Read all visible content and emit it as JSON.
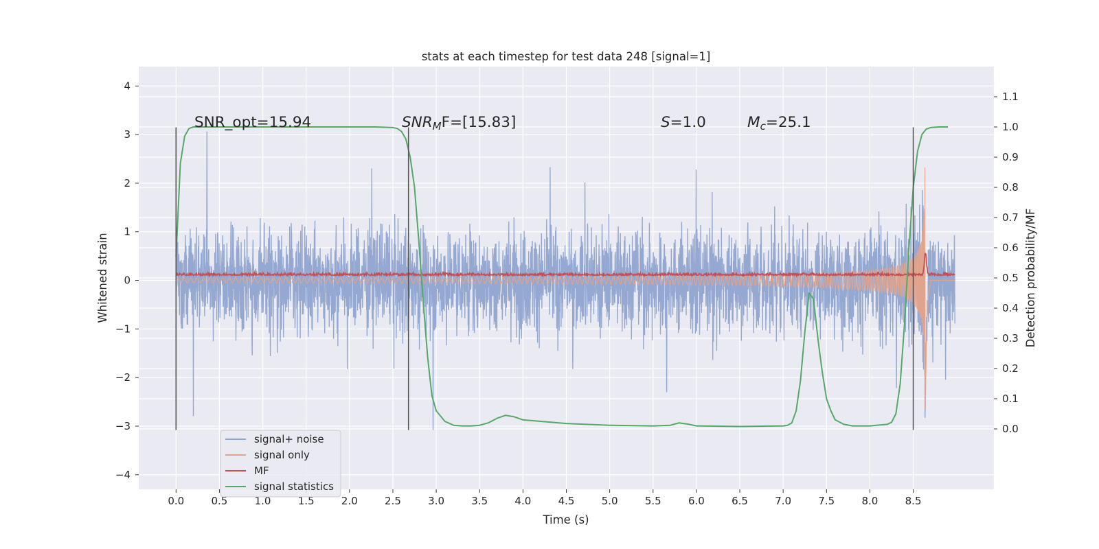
{
  "figure": {
    "title": "stats at each timestep for test data 248 [signal=1]",
    "colors": {
      "background": "#ffffff",
      "axes_face": "#eaeaf2",
      "grid": "#ffffff",
      "signal_noise": "#8fa4cf",
      "signal_only": "#e8a385",
      "mf": "#c44e52",
      "statistics": "#55a868",
      "marker": "#555555"
    }
  },
  "chart_data": {
    "type": "line",
    "xlabel": "Time (s)",
    "ylabel": "Whitened strain",
    "ylabel_right": "Detection probability/MF",
    "xlim": [
      -0.43,
      9.43
    ],
    "ylim": [
      -4.3,
      4.4
    ],
    "ylim_right": [
      -0.2,
      1.2
    ],
    "grid": true,
    "x_ticks": [
      "0.0",
      "0.5",
      "1.0",
      "1.5",
      "2.0",
      "2.5",
      "3.0",
      "3.5",
      "4.0",
      "4.5",
      "5.0",
      "5.5",
      "6.0",
      "6.5",
      "7.0",
      "7.5",
      "8.0",
      "8.5"
    ],
    "y_ticks": [
      "4",
      "3",
      "2",
      "1",
      "0",
      "−1",
      "−2",
      "−3",
      "−4"
    ],
    "y_right_ticks": [
      "1.1",
      "1.0",
      "0.9",
      "0.8",
      "0.7",
      "0.6",
      "0.5",
      "0.4",
      "0.3",
      "0.2",
      "0.1",
      "0.0"
    ],
    "legend_placement": "lower-left",
    "legend": [
      {
        "label": "signal+ noise",
        "color_key": "signal_noise"
      },
      {
        "label": "signal only",
        "color_key": "signal_only"
      },
      {
        "label": "MF",
        "color_key": "mf"
      },
      {
        "label": "signal statistics",
        "color_key": "statistics"
      }
    ],
    "annotations": {
      "snr_opt": "SNR_opt=15.94",
      "snr_mf_prefix": "SNR",
      "snr_mf_sub": "M",
      "snr_mf_suffix": "F=[15.83]",
      "s_sym": "S",
      "s_value": "=1.0",
      "mc_sym": "M",
      "mc_sub": "c",
      "mc_value": "=25.1"
    },
    "series": [
      {
        "name": "signal+ noise",
        "description": "whitened data, noise envelope approx ±1.3 with spikes to ±4",
        "x_range": [
          0.0,
          8.98
        ],
        "typical_amplitude": 1.3,
        "spike_max": 4.0
      },
      {
        "name": "signal only",
        "description": "chirp with amplitude growing up to merger",
        "x_range": [
          0.0,
          8.98
        ],
        "merger_time": 8.64,
        "peak_amplitude": 3.0
      },
      {
        "name": "MF",
        "description": "matched filter output, near 0.1 with peak at merger",
        "x_range": [
          0.0,
          8.98
        ],
        "baseline": 0.1,
        "peak_time": 8.64,
        "peak_value": 0.55
      },
      {
        "name": "signal statistics",
        "axis": "right",
        "x": [
          0.0,
          0.05,
          0.1,
          0.15,
          0.2,
          0.3,
          0.5,
          1.0,
          1.5,
          2.0,
          2.3,
          2.5,
          2.55,
          2.6,
          2.65,
          2.7,
          2.75,
          2.8,
          2.85,
          2.9,
          2.95,
          3.0,
          3.1,
          3.2,
          3.3,
          3.4,
          3.5,
          3.6,
          3.7,
          3.8,
          3.9,
          4.0,
          4.5,
          5.0,
          5.5,
          5.7,
          5.8,
          5.9,
          6.0,
          6.5,
          7.0,
          7.05,
          7.1,
          7.15,
          7.2,
          7.25,
          7.3,
          7.35,
          7.4,
          7.45,
          7.5,
          7.55,
          7.6,
          7.7,
          7.8,
          8.0,
          8.2,
          8.25,
          8.3,
          8.35,
          8.4,
          8.45,
          8.5,
          8.55,
          8.6,
          8.65,
          8.7,
          8.8,
          8.9
        ],
        "y": [
          0.57,
          0.88,
          0.97,
          0.995,
          1.0,
          1.0,
          1.0,
          1.0,
          1.0,
          1.0,
          1.0,
          0.998,
          0.995,
          0.985,
          0.96,
          0.9,
          0.8,
          0.62,
          0.42,
          0.24,
          0.11,
          0.06,
          0.025,
          0.012,
          0.01,
          0.01,
          0.012,
          0.02,
          0.035,
          0.045,
          0.04,
          0.03,
          0.018,
          0.012,
          0.01,
          0.012,
          0.02,
          0.016,
          0.01,
          0.008,
          0.01,
          0.012,
          0.02,
          0.06,
          0.16,
          0.32,
          0.45,
          0.43,
          0.3,
          0.19,
          0.1,
          0.06,
          0.03,
          0.015,
          0.01,
          0.01,
          0.015,
          0.022,
          0.05,
          0.15,
          0.35,
          0.6,
          0.8,
          0.92,
          0.975,
          0.993,
          0.998,
          1.0,
          1.0
        ]
      }
    ],
    "vertical_markers": [
      {
        "x": 0.0,
        "y_from": -3.08,
        "y_to": 3.15
      },
      {
        "x": 2.68,
        "y_from": -3.08,
        "y_to": 3.15
      },
      {
        "x": 8.5,
        "y_from": -3.08,
        "y_to": 3.15
      }
    ]
  }
}
